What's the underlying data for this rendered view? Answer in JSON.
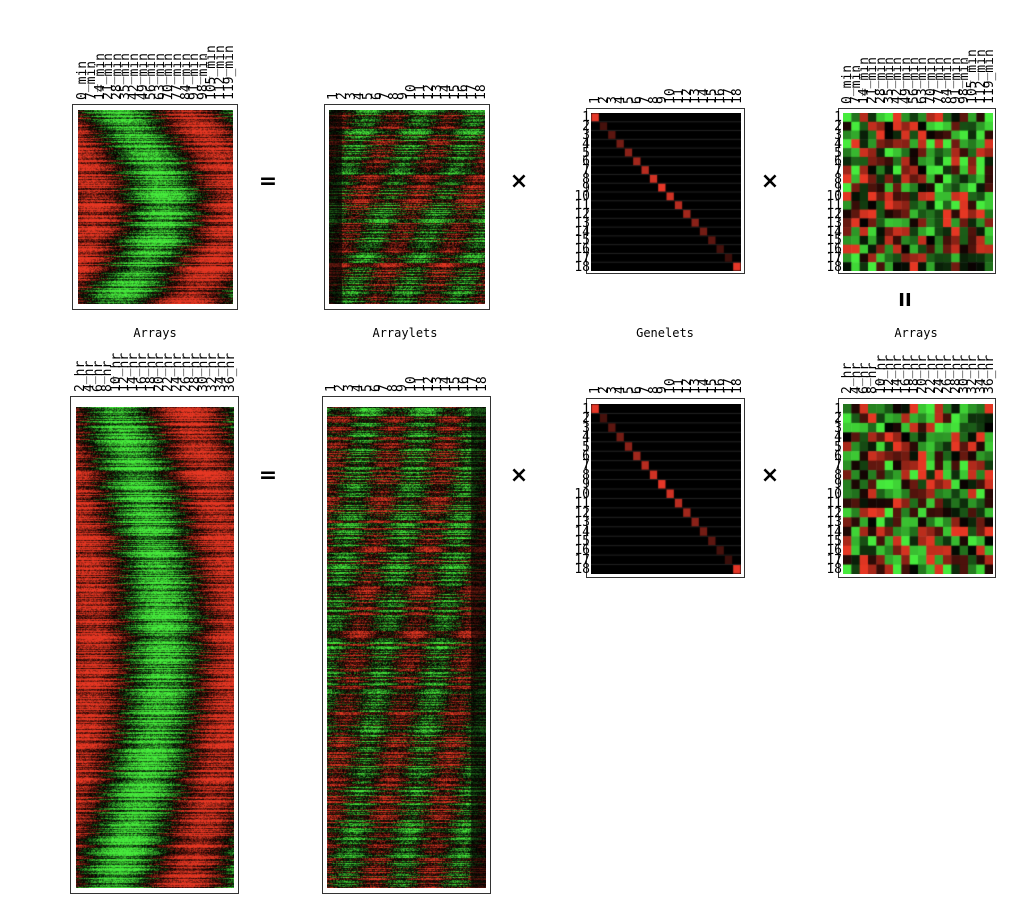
{
  "top_row": {
    "arrays_columns": [
      "0_min",
      "7_min",
      "14_min",
      "21_min",
      "28_min",
      "35_min",
      "42_min",
      "49_min",
      "56_min",
      "63_min",
      "70_min",
      "77_min",
      "84_min",
      "91_min",
      "98_min",
      "105_min",
      "112_min",
      "119_min"
    ],
    "arraylets_columns": [
      "1",
      "2",
      "3",
      "4",
      "5",
      "6",
      "7",
      "8",
      "9",
      "10",
      "11",
      "12",
      "13",
      "14",
      "15",
      "16",
      "17",
      "18"
    ],
    "genelets_columns": [
      "1",
      "2",
      "3",
      "4",
      "5",
      "6",
      "7",
      "8",
      "9",
      "10",
      "11",
      "12",
      "13",
      "14",
      "15",
      "16",
      "17",
      "18"
    ],
    "genelets_rows": [
      "1",
      "2",
      "3",
      "4",
      "5",
      "6",
      "7",
      "8",
      "9",
      "10",
      "11",
      "12",
      "13",
      "14",
      "15",
      "16",
      "17",
      "18"
    ],
    "right_arrays_columns": [
      "0_min",
      "7_min",
      "14_min",
      "21_min",
      "28_min",
      "35_min",
      "42_min",
      "49_min",
      "56_min",
      "63_min",
      "70_min",
      "77_min",
      "84_min",
      "91_min",
      "98_min",
      "105_min",
      "112_min",
      "119_min"
    ],
    "right_arrays_rows": [
      "1",
      "2",
      "3",
      "4",
      "5",
      "6",
      "7",
      "8",
      "9",
      "10",
      "11",
      "12",
      "13",
      "14",
      "15",
      "16",
      "17",
      "18"
    ]
  },
  "bottom_row": {
    "arrays_columns": [
      "2_hr",
      "4_hr",
      "6_hr",
      "8_hr",
      "10_hr",
      "12_hr",
      "14_hr",
      "16_hr",
      "18_hr",
      "20_hr",
      "22_hr",
      "24_hr",
      "26_hr",
      "28_hr",
      "30_hr",
      "32_hr",
      "34_hr",
      "36_hr"
    ],
    "arraylets_columns": [
      "1",
      "2",
      "3",
      "4",
      "5",
      "6",
      "7",
      "8",
      "9",
      "10",
      "11",
      "12",
      "13",
      "14",
      "15",
      "16",
      "17",
      "18"
    ],
    "genelets_columns": [
      "1",
      "2",
      "3",
      "4",
      "5",
      "6",
      "7",
      "8",
      "9",
      "10",
      "11",
      "12",
      "13",
      "14",
      "15",
      "16",
      "17",
      "18"
    ],
    "genelets_rows": [
      "1",
      "2",
      "3",
      "4",
      "5",
      "6",
      "7",
      "8",
      "9",
      "10",
      "11",
      "12",
      "13",
      "14",
      "15",
      "16",
      "17",
      "18"
    ],
    "right_arrays_columns": [
      "2_hr",
      "4_hr",
      "6_hr",
      "8_hr",
      "10_hr",
      "12_hr",
      "14_hr",
      "16_hr",
      "18_hr",
      "20_hr",
      "22_hr",
      "24_hr",
      "26_hr",
      "28_hr",
      "30_hr",
      "32_hr",
      "34_hr",
      "36_hr"
    ],
    "right_arrays_rows": [
      "1",
      "2",
      "3",
      "4",
      "5",
      "6",
      "7",
      "8",
      "9",
      "10",
      "11",
      "12",
      "13",
      "14",
      "15",
      "16",
      "17",
      "18"
    ]
  },
  "captions": {
    "arrays": "Arrays",
    "arraylets": "Arraylets",
    "genelets": "Genelets",
    "right_arrays": "Arrays"
  },
  "operators": {
    "equals": "=",
    "times": "×",
    "vertical_equals": "II"
  },
  "colors": {
    "green": "#3ee33e",
    "red": "#e53a2a",
    "black": "#000000",
    "diag_red": "#e63a2a"
  }
}
